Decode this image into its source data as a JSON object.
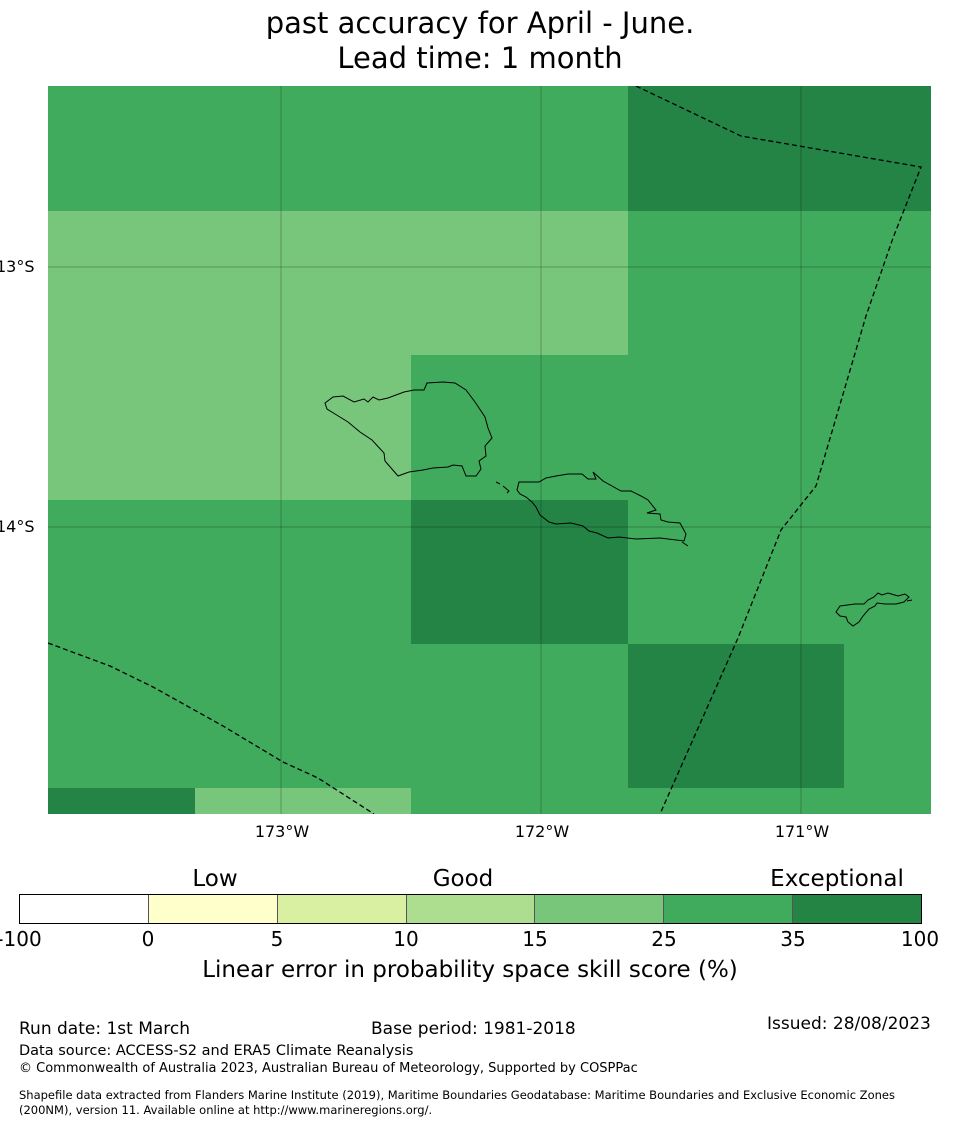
{
  "title": {
    "line1": "past accuracy for April - June.",
    "line2": "Lead time: 1 month"
  },
  "map": {
    "lat_labels": [
      "13°S",
      "14°S"
    ],
    "lon_labels": [
      "173°W",
      "172°W",
      "171°W"
    ],
    "features": [
      "skill-grid",
      "coastline-upolu",
      "coastline-savaii",
      "coastline-tutuila",
      "eez-boundary-dashed"
    ],
    "grid_colors_by_category": {
      "25-35": "#76c57a",
      "35-100": "#41ab5d",
      "exceptional-dark": "#238445"
    }
  },
  "legend": {
    "categories": [
      "Low",
      "Good",
      "Exceptional"
    ],
    "colors": [
      "#ffffff",
      "#ffffcc",
      "#d9f0a3",
      "#addd8e",
      "#78c679",
      "#41ab5d",
      "#238443"
    ],
    "ticks": [
      "-100",
      "0",
      "5",
      "10",
      "15",
      "25",
      "35",
      "100"
    ],
    "title": "Linear error in probability space skill score (%)"
  },
  "footer": {
    "run_date": "Run date: 1st March",
    "base_period": "Base period: 1981-2018",
    "issued": "Issued: 28/08/2023",
    "data_source": "Data source: ACCESS-S2 and ERA5 Climate Reanalysis",
    "copyright": "© Commonwealth of Australia 2023, Australian Bureau of Meteorology, Supported by COSPPac",
    "shapefile_1": "Shapefile data extracted from Flanders Marine Institute (2019), Maritime Boundaries Geodatabase: Maritime Boundaries and Exclusive Economic Zones",
    "shapefile_2": "(200NM), version 11. Available online at http://www.marineregions.org/."
  }
}
